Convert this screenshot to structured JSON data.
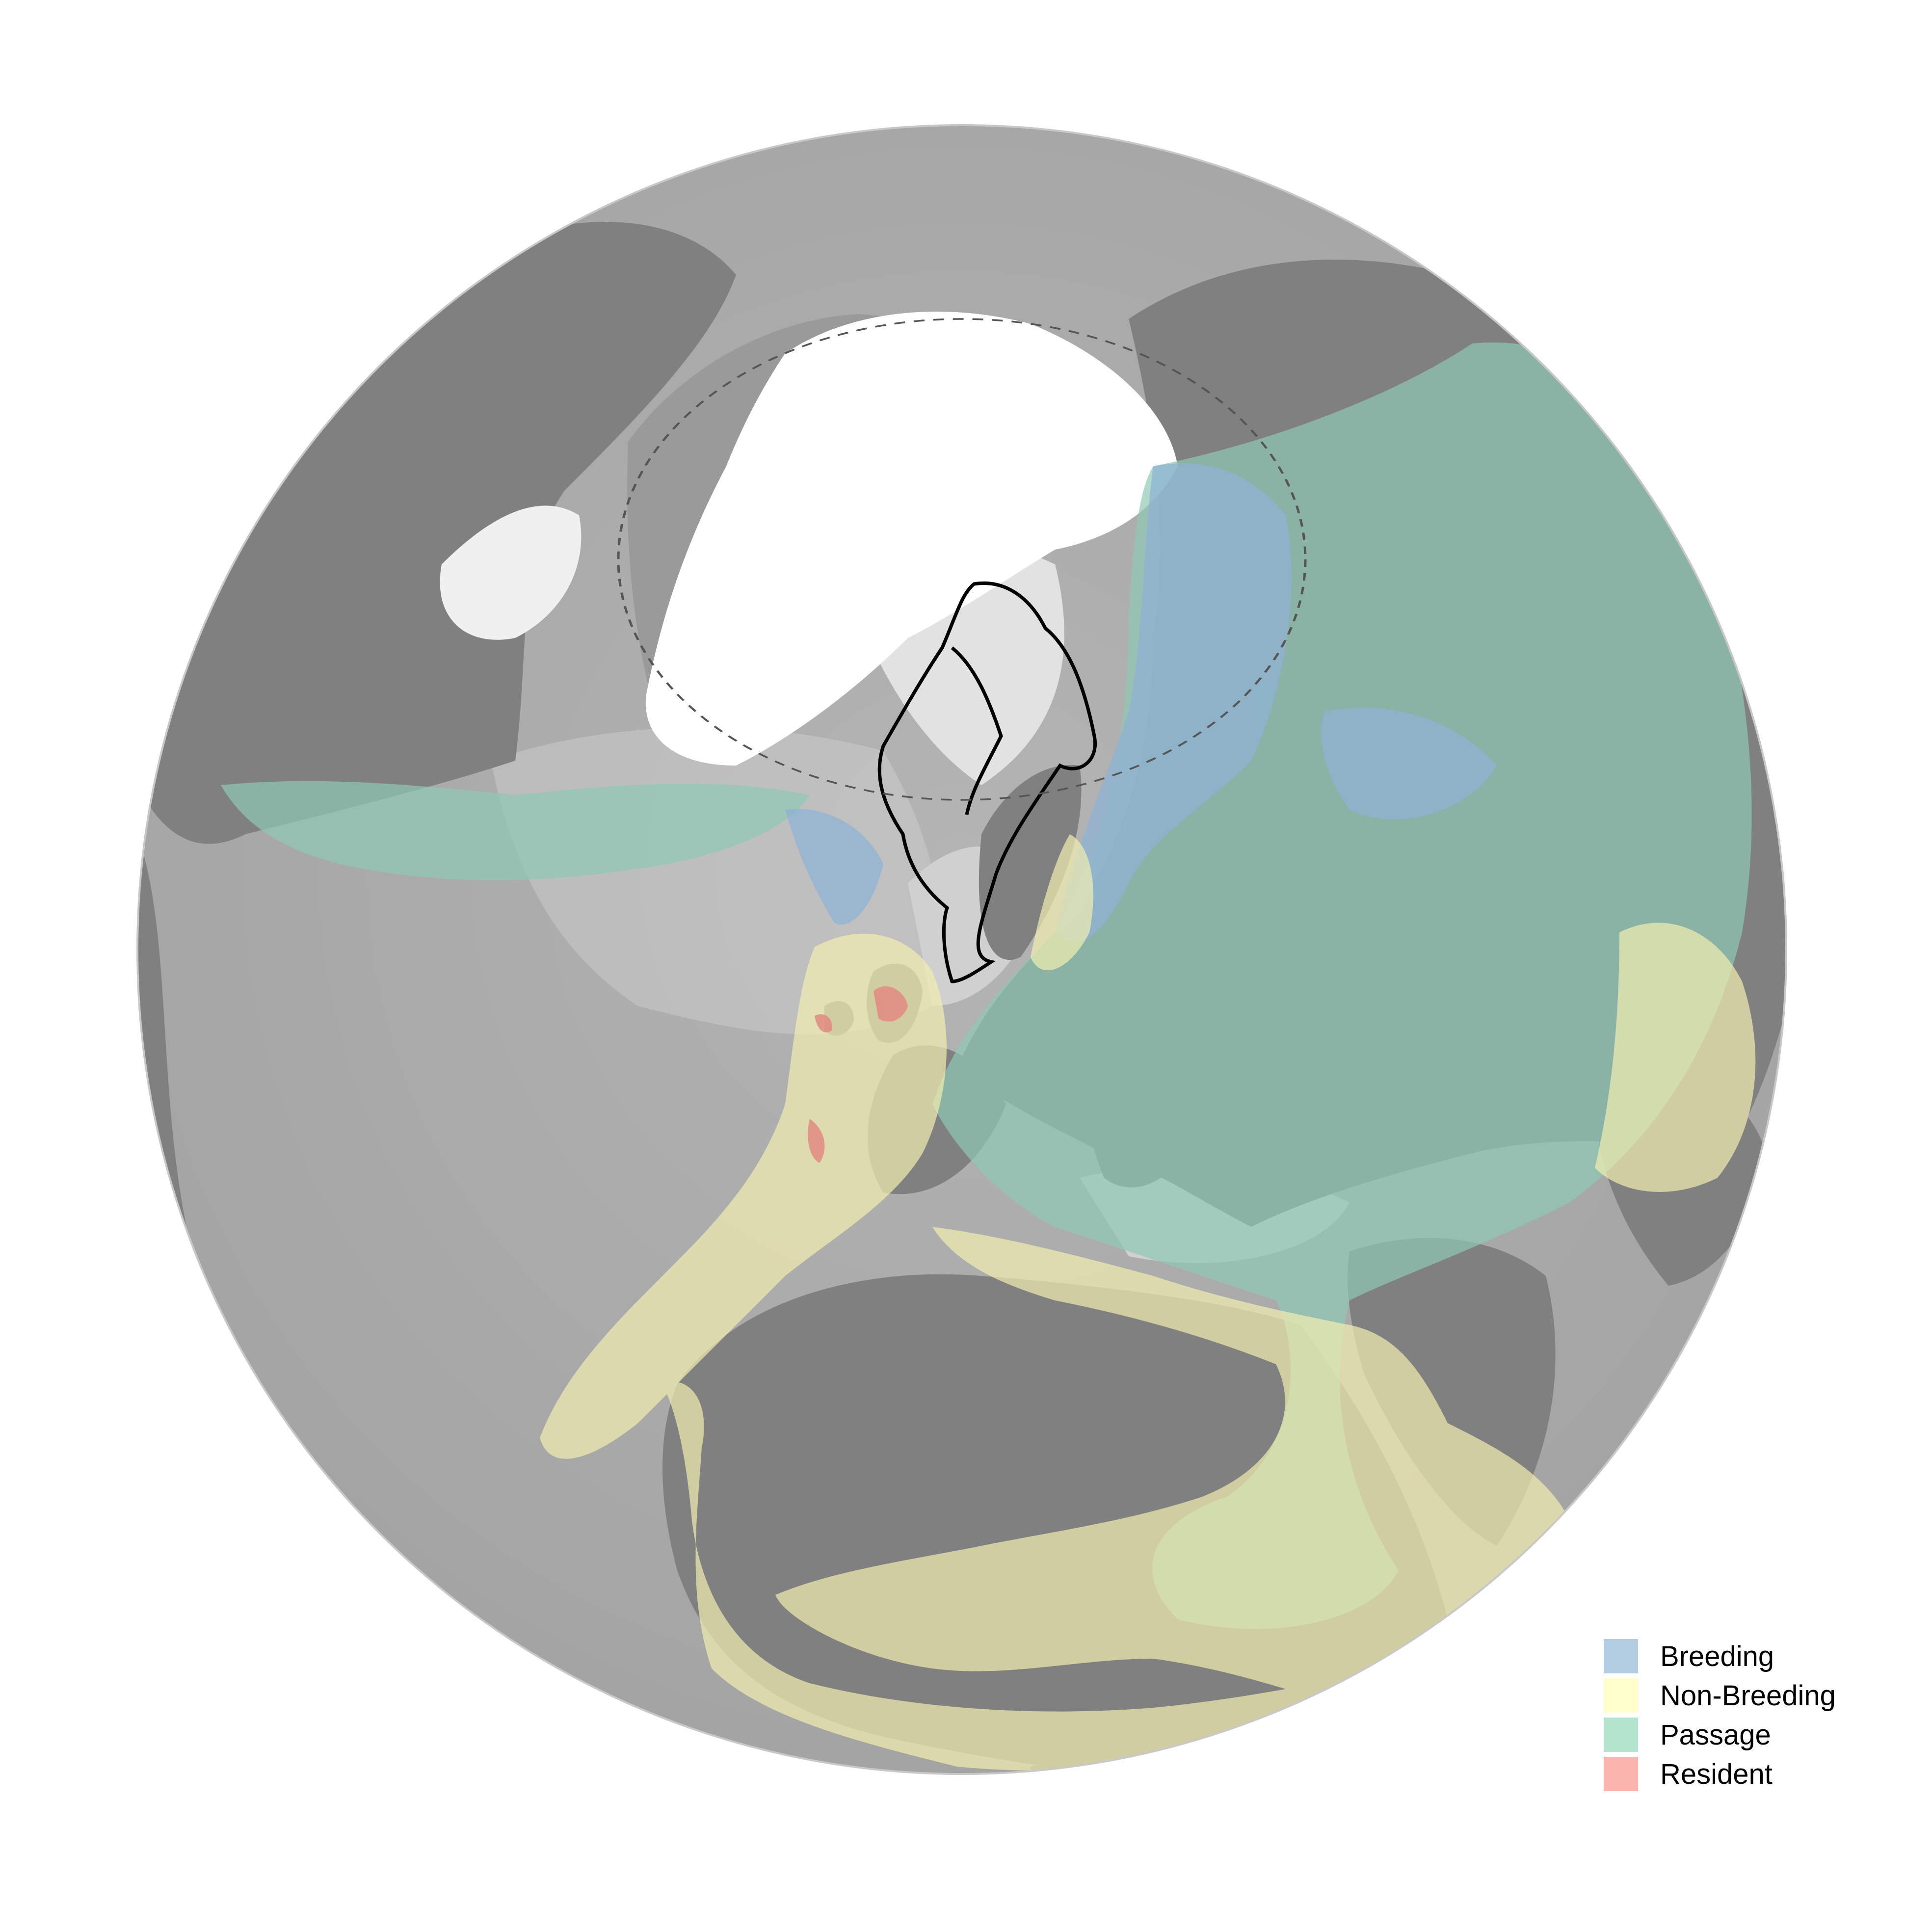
{
  "map": {
    "colors": {
      "background": "#ffffff",
      "ocean_deep": "#a8a8a8",
      "ocean_shelf": "#d6d6d6",
      "land": "#808080",
      "ice": "#ffffff",
      "circle_line": "#555555",
      "study_area_outline": "#000000"
    }
  },
  "legend": {
    "items": [
      {
        "label": "Breeding",
        "color": "#b3cde3"
      },
      {
        "label": "Non-Breeding",
        "color": "#ffffcc"
      },
      {
        "label": "Passage",
        "color": "#b3e2cd"
      },
      {
        "label": "Resident",
        "color": "#fbb4ae"
      }
    ]
  }
}
